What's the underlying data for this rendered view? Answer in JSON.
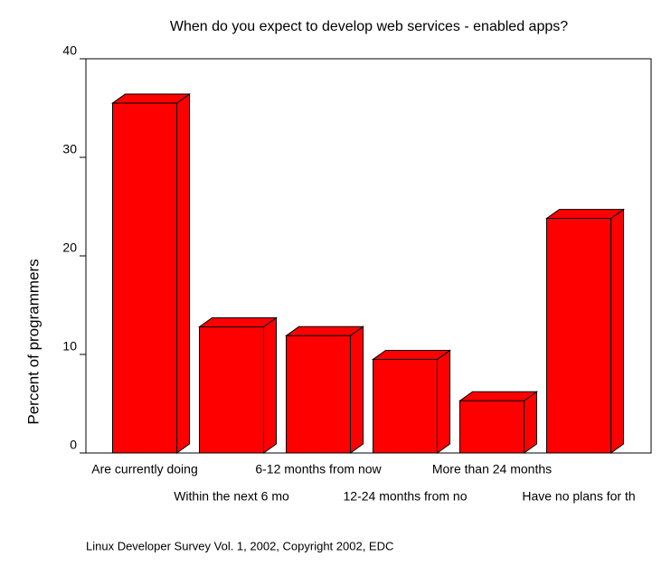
{
  "chart_data": {
    "type": "bar3d",
    "title": "When do you expect to develop web services - enabled apps?",
    "y_label": "Percent of programmers",
    "footnote": "Linux Developer Survey Vol. 1, 2002, Copyright 2002, EDC",
    "categories": [
      "Are currently doing",
      "Within the next 6 mo",
      "6-12 months from now",
      "12-24 months from no",
      "More than 24 months",
      "Have no plans for th"
    ],
    "values": [
      35.5,
      12.8,
      11.9,
      9.5,
      5.3,
      23.8
    ],
    "color": "#ff0000",
    "ylim": [
      0,
      40
    ],
    "yticks": [
      0,
      10,
      20,
      30,
      40
    ]
  }
}
